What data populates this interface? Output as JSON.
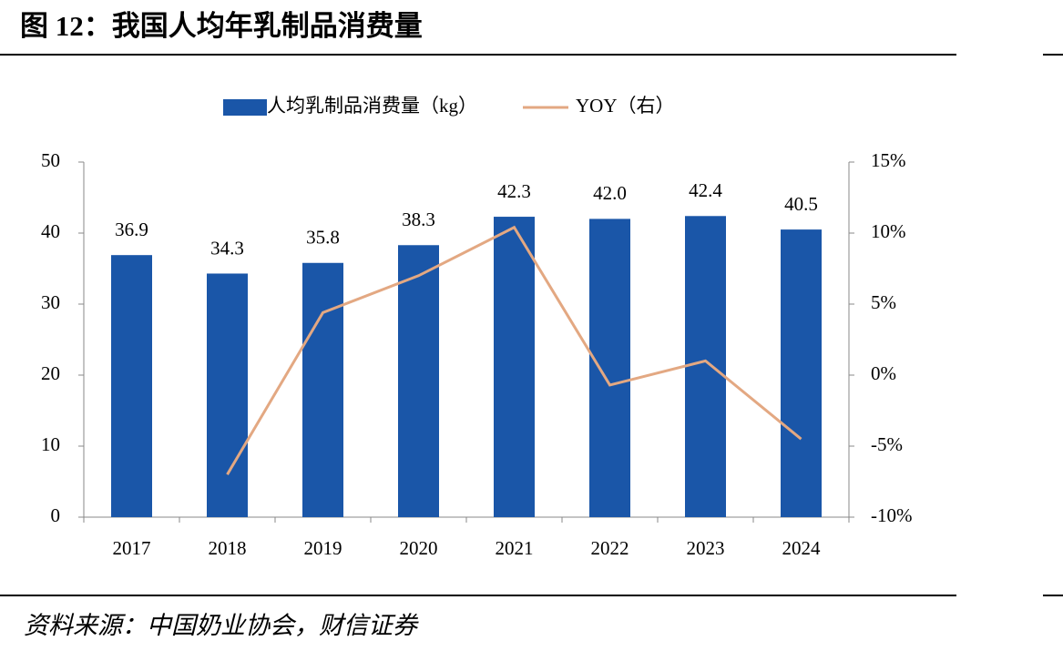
{
  "chart_data": {
    "type": "bar_line",
    "title": "图 12：我国人均年乳制品消费量",
    "source": "资料来源：中国奶业协会，财信证券",
    "categories": [
      "2017",
      "2018",
      "2019",
      "2020",
      "2021",
      "2022",
      "2023",
      "2024"
    ],
    "series": [
      {
        "name": "人均乳制品消费量（kg）",
        "type": "bar",
        "color": "#1a56a8",
        "values": [
          36.9,
          34.3,
          35.8,
          38.3,
          42.3,
          42.0,
          42.4,
          40.5
        ],
        "value_labels": [
          "36.9",
          "34.3",
          "35.8",
          "38.3",
          "42.3",
          "42.0",
          "42.4",
          "40.5"
        ]
      },
      {
        "name": "YOY（右）",
        "type": "line",
        "axis": "y2",
        "color": "#e3a882",
        "values": [
          null,
          -7.0,
          4.4,
          7.0,
          10.4,
          -0.7,
          1.0,
          -4.5
        ]
      }
    ],
    "ylim": [
      0,
      50
    ],
    "yticks": [
      0,
      10,
      20,
      30,
      40,
      50
    ],
    "y2lim": [
      -10,
      15
    ],
    "y2ticks": [
      {
        "value": -10,
        "label": "-10%"
      },
      {
        "value": -5,
        "label": "-5%"
      },
      {
        "value": 0,
        "label": "0%"
      },
      {
        "value": 5,
        "label": "5%"
      },
      {
        "value": 10,
        "label": "10%"
      },
      {
        "value": 15,
        "label": "15%"
      }
    ],
    "legend": "top"
  }
}
